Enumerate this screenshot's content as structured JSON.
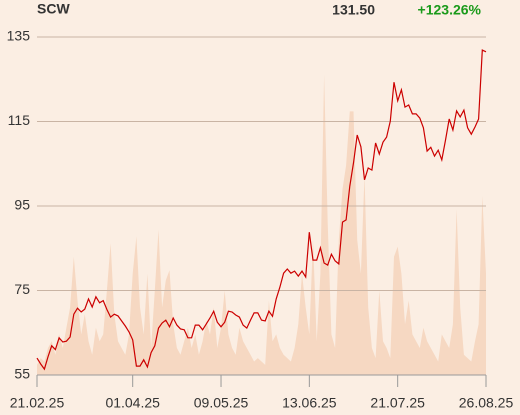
{
  "chart_data": {
    "type": "line",
    "title": "SCW",
    "price": "131.50",
    "change": "+123.26%",
    "change_color": "#1a9a1a",
    "color": "#cc0000",
    "grid": true,
    "ylim": [
      55,
      135
    ],
    "yticks": [
      55,
      75,
      95,
      115,
      135
    ],
    "categories": [
      "21.02.25",
      null,
      null,
      null,
      null,
      null,
      null,
      null,
      null,
      null,
      null,
      null,
      null,
      null,
      null,
      null,
      null,
      null,
      null,
      null,
      null,
      null,
      null,
      null,
      null,
      null,
      "01.04.25",
      null,
      null,
      null,
      null,
      null,
      null,
      null,
      null,
      null,
      null,
      null,
      null,
      null,
      null,
      null,
      null,
      null,
      null,
      null,
      null,
      null,
      null,
      null,
      "09.05.25",
      null,
      null,
      null,
      null,
      null,
      null,
      null,
      null,
      null,
      null,
      null,
      null,
      null,
      null,
      null,
      null,
      null,
      null,
      null,
      null,
      null,
      null,
      null,
      "13.06.25",
      null,
      null,
      null,
      null,
      null,
      null,
      null,
      null,
      null,
      null,
      null,
      null,
      null,
      null,
      null,
      null,
      null,
      null,
      null,
      null,
      null,
      null,
      null,
      "21.07.25",
      null,
      null,
      null,
      null,
      null,
      null,
      null,
      null,
      null,
      null,
      null,
      null,
      null,
      null,
      null,
      null,
      null,
      null,
      null,
      null,
      null,
      null,
      null,
      "26.08.25"
    ],
    "values": [
      59.0,
      57.6,
      56.4,
      59.3,
      61.9,
      61.0,
      63.8,
      62.8,
      63.0,
      64.0,
      69.4,
      70.8,
      69.9,
      70.6,
      73.0,
      71.1,
      73.5,
      72.1,
      72.6,
      70.5,
      68.7,
      69.4,
      69.0,
      67.8,
      66.6,
      65.2,
      63.3,
      57.1,
      57.1,
      58.6,
      56.9,
      60.3,
      61.9,
      66.1,
      67.3,
      68.0,
      66.4,
      68.5,
      66.8,
      65.9,
      65.7,
      63.8,
      63.8,
      66.8,
      66.8,
      65.7,
      67.1,
      68.5,
      70.1,
      67.5,
      66.4,
      67.5,
      70.1,
      69.9,
      69.2,
      68.7,
      66.8,
      66.1,
      68.0,
      69.7,
      69.7,
      68.0,
      67.8,
      70.1,
      68.9,
      73.0,
      75.8,
      79.1,
      80.1,
      79.1,
      79.6,
      78.4,
      79.6,
      78.2,
      88.8,
      82.2,
      82.2,
      85.1,
      81.5,
      81.0,
      83.6,
      82.0,
      81.3,
      91.2,
      91.7,
      99.7,
      105.2,
      111.8,
      109.0,
      101.2,
      104.0,
      103.5,
      109.9,
      107.3,
      110.1,
      111.3,
      115.1,
      124.3,
      119.9,
      122.5,
      118.4,
      118.9,
      116.8,
      116.8,
      115.8,
      113.5,
      108.0,
      108.9,
      106.8,
      108.2,
      105.9,
      110.6,
      115.6,
      113.0,
      117.5,
      116.1,
      117.7,
      113.5,
      112.0,
      113.7,
      115.6,
      131.9,
      131.5
    ],
    "volume": {
      "color": "#f6d8c2",
      "lim": [
        0,
        100
      ],
      "values": [
        3,
        5,
        4,
        8,
        10,
        6,
        12,
        8,
        14,
        20,
        35,
        22,
        12,
        18,
        10,
        6,
        14,
        10,
        12,
        25,
        39,
        18,
        10,
        8,
        6,
        12,
        30,
        41,
        20,
        12,
        30,
        8,
        25,
        43,
        20,
        28,
        31,
        15,
        8,
        6,
        10,
        14,
        8,
        12,
        6,
        10,
        16,
        12,
        20,
        8,
        14,
        25,
        12,
        8,
        6,
        14,
        10,
        8,
        6,
        4,
        5,
        4,
        3,
        22,
        10,
        12,
        8,
        6,
        5,
        4,
        8,
        15,
        30,
        20,
        12,
        40,
        10,
        30,
        89,
        45,
        12,
        8,
        40,
        55,
        62,
        78,
        78,
        40,
        30,
        59,
        20,
        8,
        5,
        25,
        10,
        8,
        5,
        35,
        38,
        30,
        15,
        22,
        12,
        10,
        8,
        14,
        10,
        8,
        6,
        4,
        12,
        10,
        8,
        15,
        49,
        20,
        6,
        5,
        4,
        10,
        15,
        53,
        30
      ]
    }
  }
}
